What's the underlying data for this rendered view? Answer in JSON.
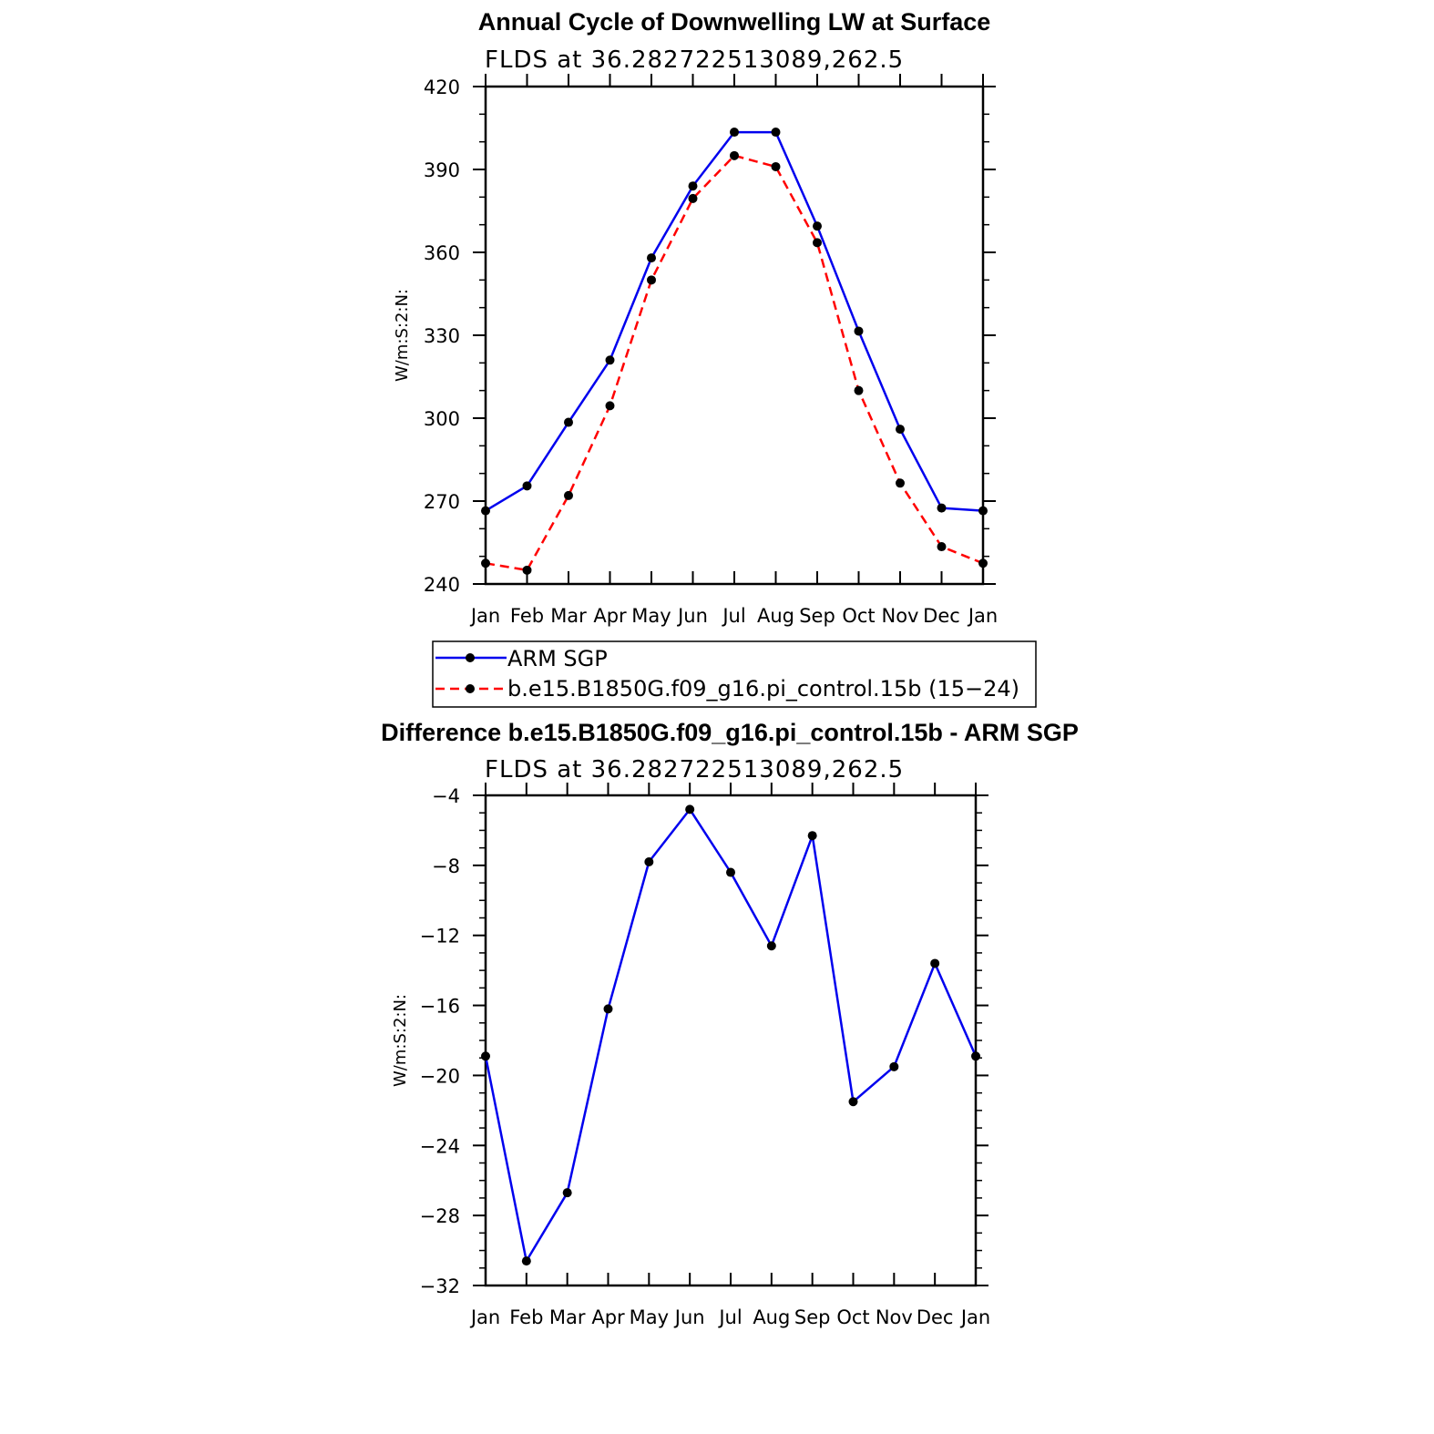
{
  "chart_data": [
    {
      "type": "line",
      "title": "Annual Cycle of Downwelling LW at Surface",
      "subtitle": "FLDS at 36.282722513089,262.5",
      "ylabel": "W/m:S:2:N:",
      "xlabel": "",
      "categories": [
        "Jan",
        "Feb",
        "Mar",
        "Apr",
        "May",
        "Jun",
        "Jul",
        "Aug",
        "Sep",
        "Oct",
        "Nov",
        "Dec",
        "Jan"
      ],
      "ylim": [
        240,
        420
      ],
      "yticks": [
        "240",
        "270",
        "300",
        "330",
        "360",
        "390",
        "420"
      ],
      "series": [
        {
          "name": "ARM SGP",
          "color": "#0000ee",
          "dash": "solid",
          "values": [
            266.5,
            275.5,
            298.5,
            321.0,
            358.0,
            384.0,
            403.5,
            403.5,
            369.5,
            331.5,
            296.0,
            267.5,
            266.5
          ]
        },
        {
          "name": "b.e15.B1850G.f09_g16.pi_control.15b (15−24)",
          "color": "#ff0000",
          "dash": "dashed",
          "values": [
            247.5,
            245.0,
            272.0,
            304.5,
            350.0,
            379.5,
            395.0,
            391.0,
            363.5,
            310.0,
            276.5,
            253.5,
            247.5
          ]
        }
      ],
      "grid": false,
      "legend": "below"
    },
    {
      "type": "line",
      "title": "Difference b.e15.B1850G.f09_g16.pi_control.15b - ARM SGP",
      "subtitle": "FLDS at 36.282722513089,262.5",
      "ylabel": "W/m:S:2:N:",
      "xlabel": "",
      "categories": [
        "Jan",
        "Feb",
        "Mar",
        "Apr",
        "May",
        "Jun",
        "Jul",
        "Aug",
        "Sep",
        "Oct",
        "Nov",
        "Dec",
        "Jan"
      ],
      "ylim": [
        -32,
        -4
      ],
      "yticks": [
        "−32",
        "−28",
        "−24",
        "−20",
        "−16",
        "−12",
        "−8",
        "−4"
      ],
      "series": [
        {
          "color": "#0000ee",
          "dash": "solid",
          "values": [
            -18.9,
            -30.6,
            -26.7,
            -16.2,
            -7.8,
            -4.8,
            -8.4,
            -12.6,
            -6.3,
            -21.5,
            -19.5,
            -13.6,
            -18.9
          ]
        }
      ],
      "grid": false,
      "legend": "none"
    }
  ]
}
